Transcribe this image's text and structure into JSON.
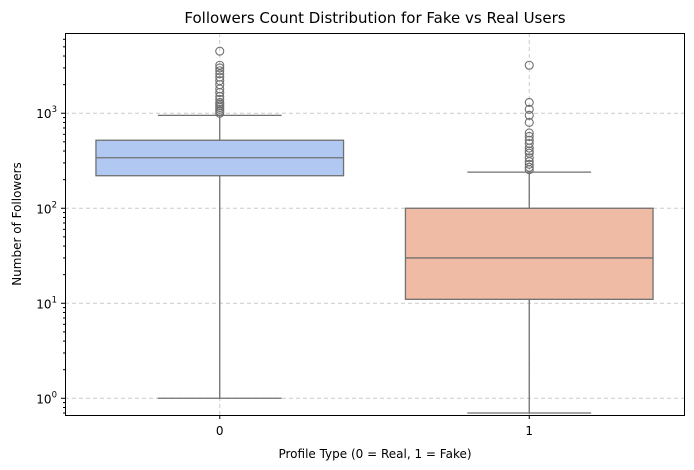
{
  "chart_data": {
    "type": "box",
    "title": "Followers Count Distribution for Fake vs Real Users",
    "xlabel": "Profile Type (0 = Real, 1 = Fake)",
    "ylabel": "Number of Followers",
    "yscale": "log",
    "ylim": [
      0.7,
      6500
    ],
    "y_ticks": [
      {
        "value": 1,
        "base": "10",
        "exp": "0"
      },
      {
        "value": 10,
        "base": "10",
        "exp": "1"
      },
      {
        "value": 100,
        "base": "10",
        "exp": "2"
      },
      {
        "value": 1000,
        "base": "10",
        "exp": "3"
      }
    ],
    "grid": true,
    "categories": [
      "0",
      "1"
    ],
    "boxes": [
      {
        "category": "0",
        "color": "#b1c8f3",
        "whisker_low": 1,
        "q1": 220,
        "median": 340,
        "q3": 520,
        "whisker_high": 950,
        "outliers": [
          4500,
          3200,
          3000,
          2800,
          2600,
          2400,
          2200,
          2000,
          1800,
          1650,
          1500,
          1400,
          1300,
          1250,
          1200,
          1150,
          1100,
          1050,
          1000
        ]
      },
      {
        "category": "1",
        "color": "#efbba4",
        "whisker_low": 0.7,
        "q1": 11,
        "median": 30,
        "q3": 100,
        "whisker_high": 240,
        "outliers": [
          3200,
          1300,
          1100,
          950,
          800,
          620,
          570,
          520,
          480,
          430,
          400,
          380,
          340,
          310,
          290,
          270,
          255
        ]
      }
    ]
  }
}
